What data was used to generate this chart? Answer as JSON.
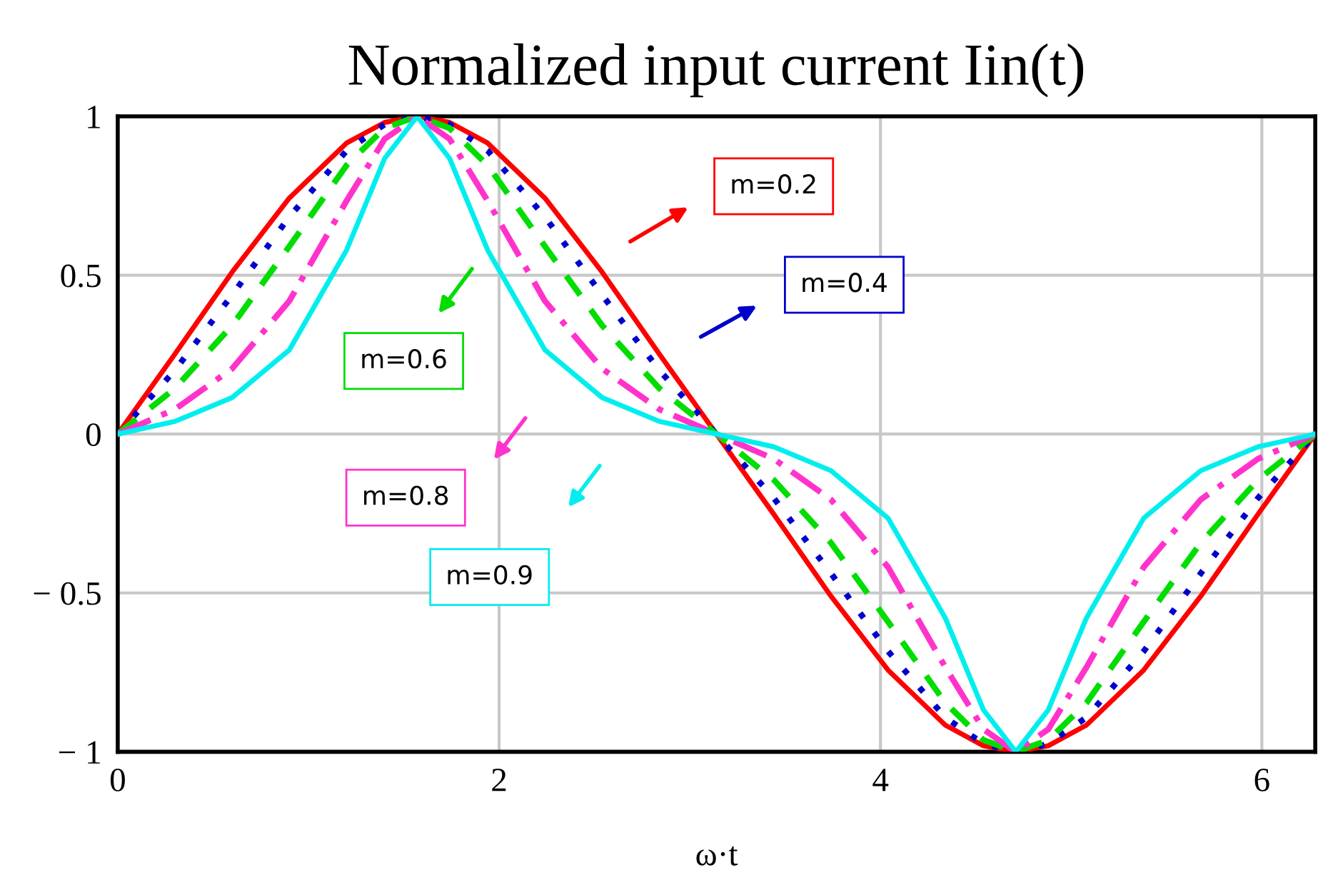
{
  "chart_data": {
    "type": "line",
    "title": "Normalized input current Iin(t)",
    "xlabel": "ω·t",
    "x": [
      0,
      0.3,
      0.6,
      0.9,
      1.2,
      1.4,
      1.57,
      1.74,
      1.94,
      2.24,
      2.54,
      2.84,
      3.14,
      3.44,
      3.74,
      4.04,
      4.34,
      4.54,
      4.71,
      4.88,
      5.08,
      5.38,
      5.68,
      5.98,
      6.28
    ],
    "series": [
      {
        "name": "m=0.2",
        "color": "#ff0000",
        "line_style": "solid",
        "values": [
          0,
          0.252,
          0.51,
          0.743,
          0.916,
          0.981,
          1,
          0.981,
          0.916,
          0.743,
          0.51,
          0.252,
          0,
          -0.252,
          -0.51,
          -0.743,
          -0.916,
          -0.981,
          -1,
          -0.981,
          -0.916,
          -0.743,
          -0.51,
          -0.252,
          0
        ]
      },
      {
        "name": "m=0.4",
        "color": "#0000cc",
        "line_style": "dotted",
        "values": [
          0,
          0.201,
          0.438,
          0.684,
          0.892,
          0.975,
          1,
          0.975,
          0.892,
          0.684,
          0.438,
          0.201,
          0,
          -0.201,
          -0.438,
          -0.684,
          -0.892,
          -0.975,
          -1,
          -0.975,
          -0.892,
          -0.684,
          -0.438,
          -0.201,
          0
        ]
      },
      {
        "name": "m=0.6",
        "color": "#00dd00",
        "line_style": "dashed",
        "values": [
          0,
          0.144,
          0.342,
          0.591,
          0.846,
          0.963,
          1,
          0.963,
          0.846,
          0.591,
          0.342,
          0.144,
          0,
          -0.144,
          -0.342,
          -0.591,
          -0.846,
          -0.963,
          -1,
          -0.963,
          -0.846,
          -0.591,
          -0.342,
          -0.144,
          0
        ]
      },
      {
        "name": "m=0.8",
        "color": "#ff33cc",
        "line_style": "dashdot",
        "values": [
          0,
          0.078,
          0.206,
          0.419,
          0.734,
          0.929,
          1,
          0.929,
          0.734,
          0.419,
          0.206,
          0.078,
          0,
          -0.078,
          -0.206,
          -0.419,
          -0.734,
          -0.929,
          -1,
          -0.929,
          -0.734,
          -0.419,
          -0.206,
          -0.078,
          0
        ]
      },
      {
        "name": "m=0.9",
        "color": "#00eeee",
        "line_style": "solid",
        "values": [
          0,
          0.04,
          0.115,
          0.265,
          0.579,
          0.868,
          1,
          0.868,
          0.579,
          0.265,
          0.115,
          0.04,
          0,
          -0.04,
          -0.115,
          -0.265,
          -0.579,
          -0.868,
          -1,
          -0.868,
          -0.579,
          -0.265,
          -0.115,
          -0.04,
          0
        ]
      }
    ],
    "xlim": [
      0,
      6.28
    ],
    "ylim": [
      -1,
      1
    ],
    "xticks": [
      0,
      2,
      4,
      6
    ],
    "yticks": [
      {
        "value": -1,
        "label": "− 1"
      },
      {
        "value": -0.5,
        "label": "− 0.5"
      },
      0,
      0.5,
      1
    ],
    "grid": true,
    "legend": false
  }
}
